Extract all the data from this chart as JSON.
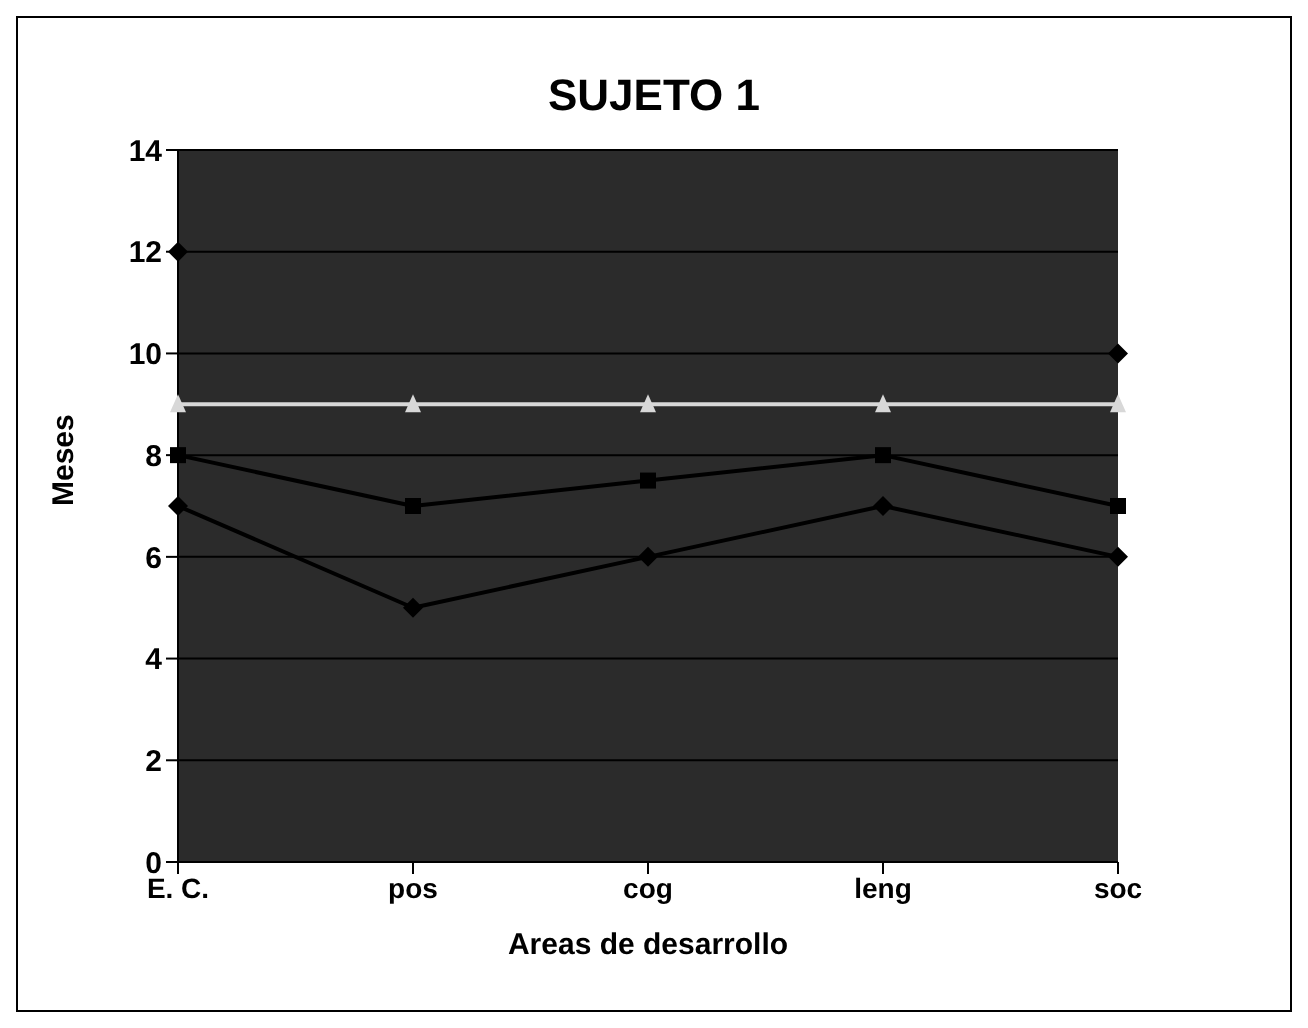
{
  "chart_data": {
    "type": "line",
    "title": "SUJETO 1",
    "xlabel": "Areas de desarrollo",
    "ylabel": "Meses",
    "categories": [
      "E. C.",
      "pos",
      "cog",
      "leng",
      "soc"
    ],
    "series": [
      {
        "color": "#000000",
        "values": [
          12,
          null,
          null,
          null,
          10
        ],
        "marker": "diamond"
      },
      {
        "color": "#000000",
        "values": [
          8,
          7,
          7.5,
          8,
          7
        ],
        "marker": "square"
      },
      {
        "color": "#000000",
        "values": [
          7,
          5,
          6,
          7,
          6
        ],
        "marker": "diamond"
      },
      {
        "color": "#d8d8d8",
        "values": [
          9,
          9,
          9,
          9,
          9
        ],
        "marker": "triangle"
      }
    ],
    "ylim": [
      0,
      14
    ],
    "yticks": [
      0,
      2,
      4,
      6,
      8,
      10,
      12,
      14
    ],
    "grid": "y",
    "legend": false
  }
}
